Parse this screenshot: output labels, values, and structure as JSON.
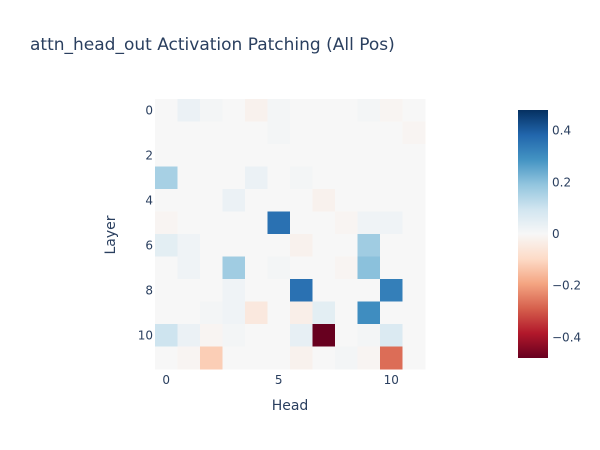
{
  "chart_data": {
    "type": "heatmap",
    "title": "attn_head_out Activation Patching (All Pos)",
    "xlabel": "Head",
    "ylabel": "Layer",
    "x_tick_labels": [
      "0",
      "5",
      "10"
    ],
    "y_tick_labels": [
      "0",
      "2",
      "4",
      "6",
      "8",
      "10"
    ],
    "n_heads": 12,
    "n_layers": 12,
    "colorscale": "RdBu",
    "zmin": -0.48,
    "zmax": 0.48,
    "colorbar_ticks": [
      {
        "value": 0.4,
        "label": "0.4"
      },
      {
        "value": 0.2,
        "label": "0.2"
      },
      {
        "value": 0,
        "label": "0"
      },
      {
        "value": -0.2,
        "label": "−0.2"
      },
      {
        "value": -0.4,
        "label": "−0.4"
      }
    ],
    "z": [
      [
        0.0,
        0.03,
        0.01,
        0.0,
        -0.02,
        0.01,
        0.0,
        0.0,
        0.0,
        0.01,
        -0.01,
        0.0
      ],
      [
        0.0,
        0.0,
        0.0,
        0.0,
        0.0,
        0.01,
        0.0,
        0.0,
        0.0,
        0.0,
        0.0,
        -0.01
      ],
      [
        0.0,
        0.0,
        0.0,
        0.0,
        0.0,
        0.0,
        0.0,
        0.0,
        0.0,
        0.0,
        0.0,
        0.0
      ],
      [
        0.16,
        0.0,
        0.0,
        0.0,
        0.03,
        0.0,
        0.01,
        0.0,
        0.0,
        0.0,
        0.0,
        0.0
      ],
      [
        0.0,
        0.0,
        0.0,
        0.03,
        0.0,
        0.0,
        0.0,
        -0.02,
        0.0,
        0.0,
        0.0,
        0.0
      ],
      [
        -0.01,
        0.0,
        0.0,
        0.0,
        0.0,
        0.36,
        0.0,
        0.0,
        -0.01,
        0.02,
        0.02,
        0.0
      ],
      [
        0.05,
        0.02,
        0.0,
        0.0,
        0.0,
        0.0,
        -0.02,
        0.0,
        0.0,
        0.17,
        0.0,
        0.0
      ],
      [
        0.0,
        0.02,
        0.0,
        0.17,
        0.0,
        0.01,
        0.0,
        0.0,
        -0.01,
        0.2,
        0.0,
        0.0
      ],
      [
        0.0,
        0.0,
        0.0,
        0.02,
        0.0,
        0.0,
        0.36,
        0.0,
        0.0,
        0.0,
        0.33,
        0.0
      ],
      [
        0.0,
        0.0,
        0.01,
        0.02,
        -0.05,
        0.0,
        -0.03,
        0.05,
        0.0,
        0.3,
        0.0,
        0.0
      ],
      [
        0.1,
        0.03,
        -0.01,
        0.01,
        0.0,
        0.0,
        0.04,
        -0.48,
        0.0,
        0.01,
        0.07,
        0.0
      ],
      [
        0.0,
        -0.01,
        -0.12,
        0.0,
        0.0,
        0.0,
        -0.02,
        0.0,
        0.01,
        -0.01,
        -0.27,
        0.0
      ]
    ]
  }
}
